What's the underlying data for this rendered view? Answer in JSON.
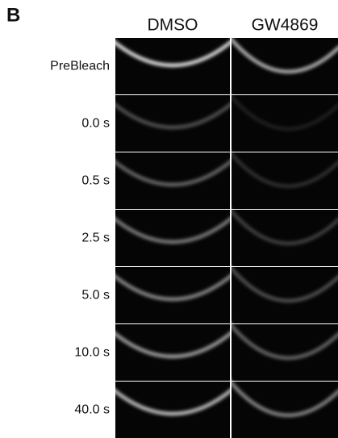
{
  "panel_label": "B",
  "columns": [
    "DMSO",
    "GW4869"
  ],
  "rows": [
    "PreBleach",
    "0.0 s",
    "0.5 s",
    "2.5 s",
    "5.0 s",
    "10.0 s",
    "40.0 s"
  ]
}
